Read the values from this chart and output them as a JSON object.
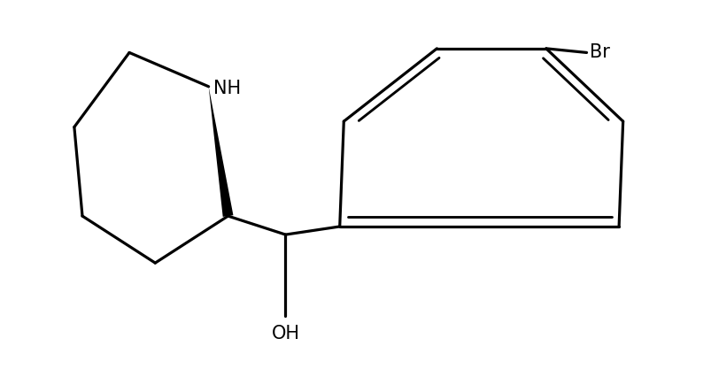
{
  "background_color": "#ffffff",
  "line_color": "#000000",
  "line_width": 2.3,
  "font_size_label": 15,
  "figsize": [
    8.04,
    4.26
  ],
  "dpi": 100,
  "NH_label": "NH",
  "OH_label": "OH",
  "Br_label": "Br"
}
